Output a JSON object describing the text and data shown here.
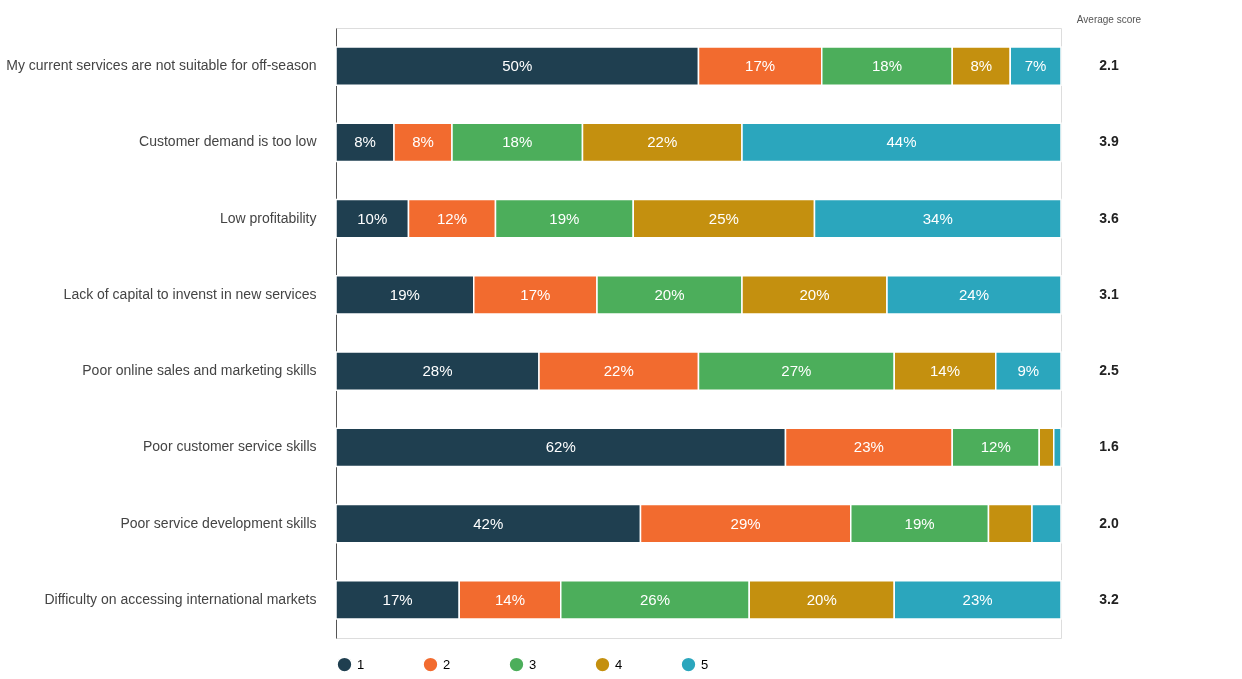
{
  "chart_data": {
    "type": "bar",
    "orientation": "horizontal",
    "stacked": true,
    "categories": [
      "My current services are not suitable for off-season",
      "Customer demand is too low",
      "Low profitability",
      "Lack of capital to invenst in new services",
      "Poor online sales and marketing skills",
      "Poor customer service skills",
      "Poor service development skills",
      "Difficulty on accessing international markets"
    ],
    "series": [
      {
        "name": "1",
        "color": "#1f3f50",
        "values": [
          50,
          8,
          10,
          19,
          28,
          62,
          42,
          17
        ],
        "value_labels": [
          "50%",
          "8%",
          "10%",
          "19%",
          "28%",
          "62%",
          "42%",
          "17%"
        ]
      },
      {
        "name": "2",
        "color": "#f26b2f",
        "values": [
          17,
          8,
          12,
          17,
          22,
          23,
          29,
          14
        ],
        "value_labels": [
          "17%",
          "8%",
          "12%",
          "17%",
          "22%",
          "23%",
          "29%",
          "14%"
        ]
      },
      {
        "name": "3",
        "color": "#4cae5b",
        "values": [
          18,
          18,
          19,
          20,
          27,
          12,
          19,
          26
        ],
        "value_labels": [
          "18%",
          "18%",
          "19%",
          "20%",
          "27%",
          "12%",
          "19%",
          "26%"
        ]
      },
      {
        "name": "4",
        "color": "#c4900f",
        "values": [
          8,
          22,
          25,
          20,
          14,
          2,
          6,
          20
        ],
        "value_labels": [
          "8%",
          "22%",
          "25%",
          "20%",
          "14%",
          null,
          null,
          "20%"
        ]
      },
      {
        "name": "5",
        "color": "#2ba6bd",
        "values": [
          7,
          44,
          34,
          24,
          9,
          1,
          4,
          23
        ],
        "value_labels": [
          "7%",
          "44%",
          "34%",
          "24%",
          "9%",
          null,
          null,
          "23%"
        ]
      }
    ],
    "xlim": [
      0,
      100
    ],
    "tick_labels": "y",
    "grid": false,
    "legend": "bottom",
    "annotations": [
      "Average score",
      "2.1",
      "3.9",
      "3.6",
      "3.1",
      "2.5",
      "1.6",
      "2.0",
      "3.2"
    ]
  }
}
